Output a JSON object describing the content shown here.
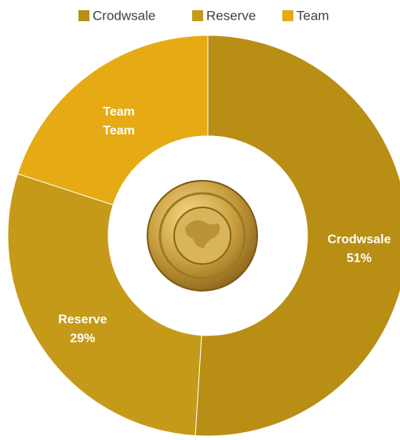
{
  "chart_data": {
    "type": "donut",
    "categories": [
      "Crodwsale",
      "Reserve",
      "Team"
    ],
    "values": [
      51,
      29,
      20
    ],
    "value_labels": [
      "51%",
      "29%",
      "Team"
    ],
    "colors": [
      "#B88E14",
      "#C49A18",
      "#E6AB14"
    ],
    "legend": "top"
  }
}
